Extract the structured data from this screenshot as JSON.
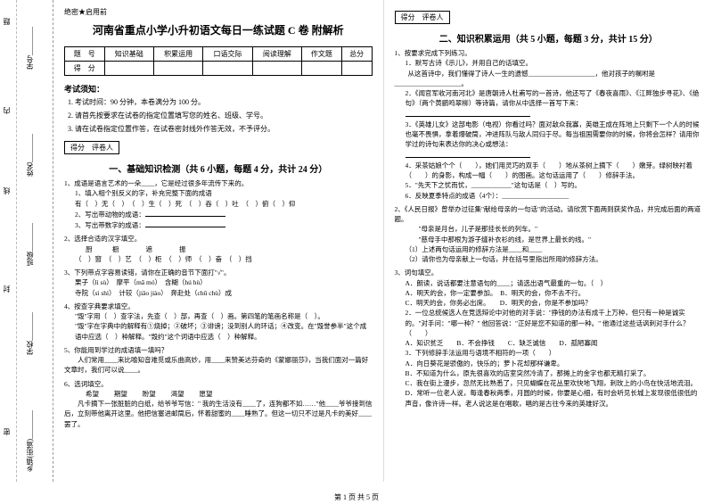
{
  "binding": {
    "labels": [
      "题",
      "内",
      "线",
      "封",
      "密"
    ],
    "fields": [
      "学号________",
      "姓名________",
      "班级________",
      "学校________",
      "乡镇(街道)________"
    ]
  },
  "confidential": "绝密★启用前",
  "main_title": "河南省重点小学小升初语文每日一练试题 C 卷 附解析",
  "score_table": {
    "row1": [
      "题　号",
      "知识基础",
      "积累运用",
      "口语交际",
      "阅读理解",
      "作文题",
      "总分"
    ],
    "row2": [
      "得　分",
      "",
      "",
      "",
      "",
      "",
      ""
    ]
  },
  "notice_head": "考试须知：",
  "notices": [
    "考试时间：90 分钟，本卷满分为 100 分。",
    "请首先按要求在试卷的指定位置填写您的姓名、班级、学号。",
    "请在试卷指定位置作答，在试卷密封线外作答无效，不予评分。"
  ],
  "marker": "得分　评卷人",
  "part1_title": "一、基础知识检测（共 6 小题，每题 4 分，共计 24 分）",
  "q1": {
    "stem": "1、成语是语言艺术的一朵____，它是经过很多年流传下来的。",
    "s1": "1、填入相个别反义的字，补充完整下面的成语",
    "line1": "有（　）无（　）　（　）生（　）死　（　）吞（　）吐　（　）俯（　）仰",
    "s2": "2、写出带动物的成语：",
    "blank_animal": "",
    "s3": "3、写出带数字的成语：",
    "blank_num": ""
  },
  "q2": {
    "stem": "2、选择合适的汉字填空。",
    "line_head": "厨　　　橱　　　　遮　　　　振",
    "line_body": "（　）窗　（　）艺　（　）柜　（　）师　（　）奋　（　）挡"
  },
  "q3": {
    "stem": "3、下列带点字容易读错，请你在正确的音节下面打\"√\"。",
    "l1": "栗子（lì sù）　摩平（mā mó）　含糊（hú hù）",
    "l2": "寺院（sì shì）　计较（jiǎo jiào）　奔赴处（chǔ chù）成"
  },
  "q4": {
    "stem": "4、按查字典要求填空。",
    "l1": "\"毁\"字用（　）查字法，先查（　）部，再查（　）画。第四笔的笔画名称是（　）。",
    "l2": "\"毁\"字在字典中的解释有①烧掉；②破坏；③诽谤；没到别人的环话；④改变。在\"毁誉参半\"这个成语中应选（　）种解释。\"毁约\"这个词语中应选（　）种解释。"
  },
  "q5": {
    "stem": "5、你能用到学过的成语填一填吗？",
    "body": "　　人们常用____来比喻知音难觅或乐曲高妙，用____来赞美达芬奇的《蒙娜丽莎》，当我们面对一篇好文章时，我们可以说____。"
  },
  "q6": {
    "stem": "6、选词填空。",
    "words": "希望 　　期望 　　盼望 　　渴望 　　愿望",
    "body": "　　凡卡摘下一张脏脏的白纸，给爷爷写信：\" 我的生活没有____了，连狗都不如……\"他____爷爷接到信后，立刻带他离开这里。他把信塞进邮筒后，怀着甜蜜的____睡熟了。但这一切只不过是凡卡的美好____罢了。"
  },
  "part2_title": "二、知识积累运用（共 5 小题，每题 3 分，共计 15 分）",
  "r1": {
    "stem": "1、按要求完成下列练习。",
    "s1": "1．默写古诗《示儿》，并用自己的话填空。",
    "l1": "　　从这首诗中，我们懂得了诗人一生的遗憾____________________，他对孩子的嘱咐是____________________。",
    "s2": "2．《闻官军收河南河北》是唐朝诗人杜甫写的一首诗，他还写了《春夜喜雨》、《江畔独步寻花》、《绝句》（两个黄鹂鸣翠柳）等诗篇，请你从中选择一首写下来：",
    "l2": "____________________",
    "s3": "3．《英雄儿女》这部电影（电视）你看过吗？面对敌众我寡，英雄王成在阵地上只剩下一个人的时候也毫不畏惧，拿着爆破筒，冲进阵队与敌人同归于尽。每当祖国需要你的时候，你将会怎样？请用你学过的诗句来表达你的决心或想法：",
    "l3": "____________________",
    "s4": "4．采茶姑娘个个（　　），她们用灵巧的双手（　　）地从茶树上摘下（　　）嫩芽。绿树映衬着（　　）的身影，构成一幅（　　）的图画。这句话运用了（　　）修辞手法。",
    "s5": "5．\"先天下之忧而忧，____________\"这句话是（　）写的。",
    "s6": "6．反映夏季特点的成语（4个）：____________________"
  },
  "r2": {
    "stem": "2、《人民日报》曾举办过征集\"献给母亲的一句话\"的活动。请欣赏下面两则获奖作品，并完成后面的两道题。",
    "quote1": "　　\"母亲是月台，儿子是那挂长长的列车。\"",
    "quote2": "　　\"慈母手中那根为游子缝补衣衫的线，是世界上最长的线。\"",
    "q1": "（1）上述两句话运用的修辞方法是____和____",
    "q2": "（2）请你也为母亲献上一句话，并在括号里指出所用的修辞方法。"
  },
  "r3": {
    "stem": "3、词句填空。",
    "l1": "A．朗读，说话都要注意语句的____；请选出语气最重的一句。（　）",
    "l2": "A．明天的会，你一定要参加。　B．明天的会，你不去不行。",
    "l3": "C．明天的会，你务必出席。　　D．明天的会，你是不参加吗？",
    "l4": "2．一位总统候选人在竞选辩论中对他的对手说：\"挣钱的办法有成千上万种，但只有一种是诚实的。\"对手问：\"哪一种？\" 他回答说：\"正好是您不知道的那一种。\" 他通过这些话讽刺对手什么？（　　）",
    "oA": "A．知识贫乏　　B．不会挣钱　　C．缺乏诚信　　D．孤陋寡闻",
    "l5": "3．下列修辞手法运用与语境不相符的一项（　　）",
    "oB1": "A．向日葵花是骄傲的，快乐的；萝卜花却那样谦卑。",
    "oB2": "B．不知道为什么，原先很喜欢的店室突然冷清了，那摊上的金字也都无精打采了。",
    "oB3": "C．我在街上漫步，忽然无比熟悉了，只见蝴蝶在花丛里欢快地飞翔，刺玫上的小鸟在快活地流泪。",
    "oB4": "D．常听一位老人说，每逢春秋两季，月圆的时候，你要是心细，有时会听见长城上发现很低很低的声音，像许诗一样。老人说这是在唱歌，唱的是古往今来的英雄好汉。"
  },
  "footer": "第 1 页 共 5 页"
}
